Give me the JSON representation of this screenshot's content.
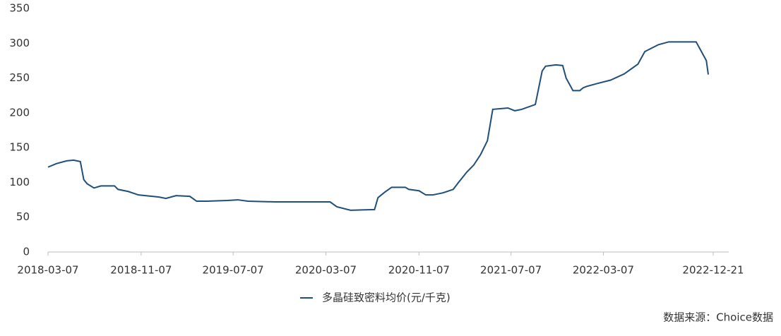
{
  "chart_data": {
    "type": "line",
    "x": [
      "2018-03-07",
      "2018-03-29",
      "2018-04-25",
      "2018-05-13",
      "2018-05-31",
      "2018-06-09",
      "2018-06-18",
      "2018-07-06",
      "2018-07-24",
      "2018-08-29",
      "2018-09-07",
      "2018-10-04",
      "2018-10-31",
      "2018-12-24",
      "2019-01-11",
      "2019-02-07",
      "2019-03-15",
      "2019-04-02",
      "2019-04-29",
      "2019-06-22",
      "2019-07-19",
      "2019-08-15",
      "2019-10-26",
      "2020-03-18",
      "2020-04-05",
      "2020-05-11",
      "2020-07-13",
      "2020-07-22",
      "2020-08-09",
      "2020-08-27",
      "2020-10-02",
      "2020-10-11",
      "2020-11-07",
      "2020-11-25",
      "2020-12-13",
      "2021-01-09",
      "2021-02-05",
      "2021-02-19",
      "2021-03-13",
      "2021-03-31",
      "2021-04-18",
      "2021-05-06",
      "2021-05-20",
      "2021-06-29",
      "2021-07-17",
      "2021-08-04",
      "2021-09-09",
      "2021-09-27",
      "2021-10-06",
      "2021-11-02",
      "2021-11-20",
      "2021-11-29",
      "2021-12-17",
      "2022-01-04",
      "2022-01-13",
      "2022-01-22",
      "2022-02-18",
      "2022-03-26",
      "2022-05-01",
      "2022-06-06",
      "2022-06-24",
      "2022-07-30",
      "2022-08-26",
      "2022-11-06",
      "2022-11-18",
      "2022-12-03",
      "2022-12-08"
    ],
    "series": [
      {
        "name": "多晶硅致密料均价(元/千克)",
        "color": "#1f4e79",
        "values": [
          122,
          127,
          131,
          132,
          130,
          104,
          98,
          92,
          95,
          95,
          90,
          87,
          82,
          79,
          77,
          81,
          80,
          73,
          73,
          74,
          75,
          73,
          72,
          72,
          65,
          60,
          61,
          78,
          86,
          93,
          93,
          90,
          88,
          82,
          82,
          85,
          90,
          100,
          115,
          125,
          140,
          160,
          205,
          207,
          203,
          205,
          212,
          260,
          267,
          269,
          268,
          250,
          232,
          232,
          236,
          238,
          242,
          247,
          256,
          270,
          288,
          298,
          302,
          302,
          290,
          275,
          255
        ]
      }
    ],
    "xlim": [
      "2018-03-07",
      "2022-12-21"
    ],
    "xticks": [
      "2018-03-07",
      "2018-11-07",
      "2019-07-07",
      "2020-03-07",
      "2020-11-07",
      "2021-07-07",
      "2022-03-07",
      "2022-12-21"
    ],
    "ylim": [
      0,
      350
    ],
    "yticks": [
      0,
      50,
      100,
      150,
      200,
      250,
      300,
      350
    ],
    "source": "数据来源：Choice数据"
  }
}
